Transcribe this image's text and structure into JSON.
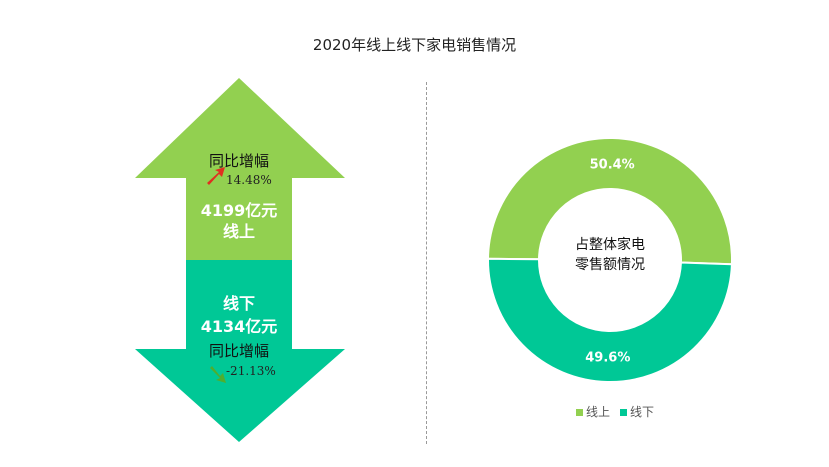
{
  "title": "2020年线上线下家电销售情况",
  "colors": {
    "online": "#92d050",
    "offline": "#00c896",
    "up_icon": "#e03020",
    "down_icon": "#4fae2e"
  },
  "online": {
    "yoy_label": "同比增幅",
    "yoy_value": "14.48%",
    "amount": "4199亿元",
    "channel": "线上"
  },
  "offline": {
    "yoy_label": "同比增幅",
    "yoy_value": "-21.13%",
    "amount": "4134亿元",
    "channel": "线下"
  },
  "donut": {
    "center_line1": "占整体家电",
    "center_line2": "零售额情况"
  },
  "chart_data": [
    {
      "type": "bar",
      "title": "2020年线上线下家电销售情况",
      "categories": [
        "线上",
        "线下"
      ],
      "values": [
        4199,
        4134
      ],
      "unit": "亿元",
      "yoy_growth_pct": [
        14.48,
        -21.13
      ]
    },
    {
      "type": "pie",
      "title": "占整体家电零售额情况",
      "labels": [
        "线上",
        "线下"
      ],
      "values": [
        50.4,
        49.6
      ],
      "value_labels": [
        "50.4%",
        "49.6%"
      ],
      "donut": true,
      "legend": "bottom"
    }
  ]
}
